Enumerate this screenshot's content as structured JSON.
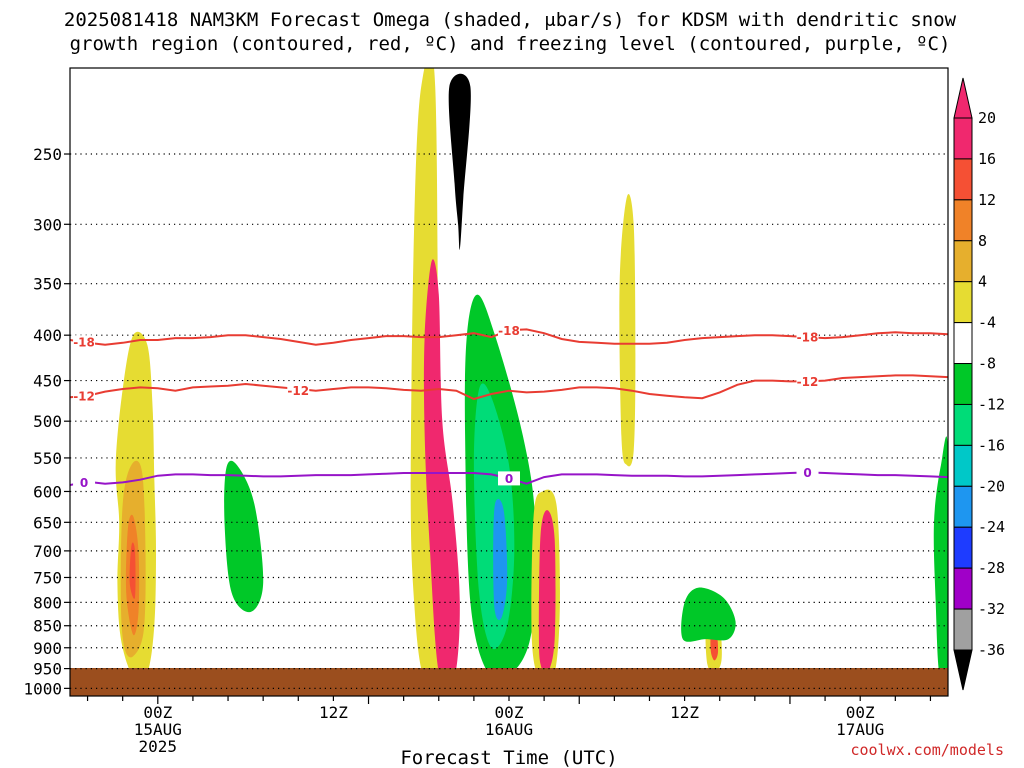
{
  "chart_data": {
    "type": "heatmap",
    "title_line1": "2025081418 NAM3KM Forecast Omega (shaded, μbar/s) for KDSM with dendritic snow",
    "title_line2": "growth region (contoured, red, ºC) and freezing level (contoured, purple, ºC)",
    "xlabel": "Forecast Time (UTC)",
    "credit": "coolwx.com/models",
    "x_axis": {
      "unit": "hours after 2025-08-14 18Z",
      "range": [
        -5,
        45
      ],
      "ticks": [
        {
          "x": 0,
          "lines": [
            "00Z",
            "15AUG",
            "2025"
          ]
        },
        {
          "x": 10,
          "lines": [
            "12Z"
          ]
        },
        {
          "x": 20,
          "lines": [
            "00Z",
            "16AUG"
          ]
        },
        {
          "x": 30,
          "lines": [
            "12Z"
          ]
        },
        {
          "x": 40,
          "lines": [
            "00Z",
            "17AUG"
          ]
        }
      ]
    },
    "y_axis": {
      "unit": "hPa",
      "scale": "log",
      "reversed": true,
      "range": [
        1020,
        200
      ],
      "ticks": [
        250,
        300,
        350,
        400,
        450,
        500,
        550,
        600,
        650,
        700,
        750,
        800,
        850,
        900,
        950,
        1000
      ],
      "grid": "dotted"
    },
    "colorbar": {
      "labels": [
        "20",
        "16",
        "12",
        "8",
        "4",
        "-4",
        "-8",
        "-12",
        "-16",
        "-20",
        "-24",
        "-28",
        "-32",
        "-36"
      ],
      "colors": [
        "#f0286e",
        "#f55034",
        "#f08228",
        "#e6af2d",
        "#e6dc32",
        "#ffffff",
        "#00c828",
        "#00dc78",
        "#00c8c8",
        "#1e96f0",
        "#1e3cff",
        "#a000c8",
        "#a0a0a0",
        "#000000"
      ]
    },
    "shaded_features": [
      {
        "name": "",
        "color": "#e6dc32",
        "points": [
          [
            -2.2,
            650
          ],
          [
            -2.4,
            560
          ],
          [
            -2.0,
            460
          ],
          [
            -1.4,
            400
          ],
          [
            -0.6,
            410
          ],
          [
            -0.3,
            480
          ],
          [
            -0.2,
            580
          ],
          [
            -0.1,
            700
          ],
          [
            -0.2,
            850
          ],
          [
            -0.6,
            960
          ],
          [
            -1.4,
            970
          ],
          [
            -2.1,
            880
          ],
          [
            -2.3,
            760
          ]
        ]
      },
      {
        "name": "",
        "color": "#e6af2d",
        "points": [
          [
            -2.1,
            800
          ],
          [
            -2.0,
            620
          ],
          [
            -1.5,
            560
          ],
          [
            -0.9,
            570
          ],
          [
            -0.7,
            700
          ],
          [
            -0.8,
            860
          ],
          [
            -1.4,
            920
          ],
          [
            -1.9,
            900
          ]
        ]
      },
      {
        "name": "",
        "color": "#f08228",
        "points": [
          [
            -1.8,
            780
          ],
          [
            -1.7,
            660
          ],
          [
            -1.4,
            640
          ],
          [
            -1.1,
            700
          ],
          [
            -1.1,
            820
          ],
          [
            -1.4,
            870
          ]
        ]
      },
      {
        "name": "",
        "color": "#f55034",
        "points": [
          [
            -1.6,
            760
          ],
          [
            -1.5,
            690
          ],
          [
            -1.3,
            700
          ],
          [
            -1.3,
            790
          ]
        ]
      },
      {
        "name": "",
        "color": "#00c828",
        "points": [
          [
            3.8,
            650
          ],
          [
            3.9,
            565
          ],
          [
            4.5,
            560
          ],
          [
            5.5,
            620
          ],
          [
            6.0,
            760
          ],
          [
            5.3,
            820
          ],
          [
            4.2,
            780
          ]
        ]
      },
      {
        "name": "",
        "color": "#e6dc32",
        "points": [
          [
            14.6,
            800
          ],
          [
            14.4,
            600
          ],
          [
            14.6,
            300
          ],
          [
            15.0,
            210
          ],
          [
            15.8,
            210
          ],
          [
            16.0,
            600
          ],
          [
            16.2,
            900
          ],
          [
            15.6,
            980
          ],
          [
            15.0,
            950
          ]
        ]
      },
      {
        "name": "",
        "color": "#f0286e",
        "points": [
          [
            15.5,
            700
          ],
          [
            15.2,
            520
          ],
          [
            15.2,
            400
          ],
          [
            15.6,
            330
          ],
          [
            16.0,
            360
          ],
          [
            16.2,
            500
          ],
          [
            16.8,
            620
          ],
          [
            17.2,
            800
          ],
          [
            16.9,
            970
          ],
          [
            16.0,
            960
          ]
        ]
      },
      {
        "name": "",
        "color": "#000000",
        "points": [
          [
            16.6,
            210
          ],
          [
            17.8,
            210
          ],
          [
            17.4,
            280
          ],
          [
            17.2,
            320
          ],
          [
            17.1,
            300
          ],
          [
            16.9,
            270
          ]
        ]
      },
      {
        "name": "",
        "color": "#00c828",
        "points": [
          [
            17.5,
            520
          ],
          [
            17.6,
            400
          ],
          [
            18.2,
            360
          ],
          [
            19.2,
            400
          ],
          [
            20.8,
            520
          ],
          [
            21.5,
            650
          ],
          [
            21.3,
            860
          ],
          [
            20.2,
            960
          ],
          [
            18.8,
            960
          ],
          [
            17.8,
            800
          ]
        ]
      },
      {
        "name": "",
        "color": "#00dc78",
        "points": [
          [
            18.0,
            560
          ],
          [
            18.3,
            460
          ],
          [
            19.0,
            470
          ],
          [
            20.0,
            560
          ],
          [
            20.3,
            700
          ],
          [
            19.9,
            850
          ],
          [
            19.0,
            900
          ],
          [
            18.3,
            780
          ]
        ]
      },
      {
        "name": "",
        "color": "#1e96f0",
        "points": [
          [
            19.1,
            720
          ],
          [
            19.2,
            620
          ],
          [
            19.7,
            630
          ],
          [
            19.9,
            750
          ],
          [
            19.6,
            830
          ],
          [
            19.2,
            820
          ]
        ]
      },
      {
        "name": "",
        "color": "#e6dc32",
        "points": [
          [
            21.3,
            880
          ],
          [
            21.4,
            640
          ],
          [
            21.9,
            600
          ],
          [
            22.7,
            620
          ],
          [
            22.9,
            800
          ],
          [
            22.6,
            960
          ],
          [
            21.8,
            980
          ]
        ]
      },
      {
        "name": "",
        "color": "#f0286e",
        "points": [
          [
            21.7,
            860
          ],
          [
            21.8,
            670
          ],
          [
            22.2,
            630
          ],
          [
            22.6,
            680
          ],
          [
            22.6,
            880
          ],
          [
            22.2,
            960
          ],
          [
            21.8,
            940
          ]
        ]
      },
      {
        "name": "",
        "color": "#e6dc32",
        "points": [
          [
            26.4,
            520
          ],
          [
            26.3,
            350
          ],
          [
            26.7,
            280
          ],
          [
            27.1,
            300
          ],
          [
            27.2,
            420
          ],
          [
            27.1,
            540
          ],
          [
            26.7,
            560
          ]
        ]
      },
      {
        "name": "",
        "color": "#e6dc32",
        "points": [
          [
            31.3,
            940
          ],
          [
            31.2,
            860
          ],
          [
            31.5,
            830
          ],
          [
            32.0,
            850
          ],
          [
            32.1,
            930
          ],
          [
            31.7,
            960
          ]
        ]
      },
      {
        "name": "",
        "color": "#f55034",
        "points": [
          [
            31.5,
            910
          ],
          [
            31.5,
            870
          ],
          [
            31.8,
            860
          ],
          [
            31.9,
            910
          ],
          [
            31.7,
            930
          ]
        ]
      },
      {
        "name": "",
        "color": "#00c828",
        "points": [
          [
            29.9,
            880
          ],
          [
            30.0,
            800
          ],
          [
            30.8,
            770
          ],
          [
            32.2,
            790
          ],
          [
            32.9,
            840
          ],
          [
            32.5,
            880
          ],
          [
            31.2,
            880
          ]
        ]
      },
      {
        "name": "",
        "color": "#00c828",
        "points": [
          [
            44.5,
            960
          ],
          [
            44.3,
            800
          ],
          [
            44.2,
            650
          ],
          [
            44.6,
            560
          ],
          [
            45.0,
            540
          ],
          [
            45.0,
            960
          ]
        ]
      }
    ],
    "contours": [
      {
        "name": "",
        "label": "-18",
        "color": "#e83c32",
        "x": [
          -5,
          -4,
          -3,
          -2,
          -1,
          0,
          1,
          2,
          3,
          4,
          5,
          6,
          7,
          8,
          9,
          10,
          11,
          12,
          13,
          14,
          15,
          16,
          17,
          18,
          19,
          20,
          21,
          22,
          23,
          24,
          25,
          26,
          27,
          28,
          29,
          30,
          31,
          32,
          33,
          34,
          35,
          36,
          37,
          38,
          39,
          40,
          41,
          42,
          43,
          44,
          45
        ],
        "y": [
          405,
          408,
          410,
          408,
          405,
          405,
          403,
          403,
          402,
          400,
          400,
          402,
          404,
          407,
          410,
          408,
          405,
          403,
          401,
          401,
          402,
          402,
          400,
          398,
          402,
          395,
          394,
          398,
          404,
          407,
          408,
          409,
          409,
          409,
          408,
          405,
          403,
          402,
          401,
          400,
          400,
          401,
          402,
          403,
          402,
          400,
          398,
          397,
          398,
          398,
          399
        ]
      },
      {
        "name": "",
        "label": "-12",
        "color": "#e83c32",
        "x": [
          -5,
          -4,
          -3,
          -2,
          -1,
          0,
          1,
          2,
          3,
          4,
          5,
          6,
          7,
          8,
          9,
          10,
          11,
          12,
          13,
          14,
          15,
          16,
          17,
          18,
          19,
          20,
          21,
          22,
          23,
          24,
          25,
          26,
          27,
          28,
          29,
          30,
          31,
          32,
          33,
          34,
          35,
          36,
          37,
          38,
          39,
          40,
          41,
          42,
          43,
          44,
          45
        ],
        "y": [
          470,
          468,
          463,
          460,
          458,
          459,
          462,
          458,
          457,
          456,
          454,
          456,
          458,
          460,
          462,
          460,
          458,
          458,
          459,
          461,
          462,
          460,
          462,
          472,
          466,
          462,
          464,
          463,
          461,
          458,
          458,
          459,
          462,
          466,
          468,
          470,
          471,
          464,
          455,
          450,
          450,
          451,
          451,
          450,
          447,
          446,
          445,
          444,
          444,
          445,
          446
        ]
      },
      {
        "name": "",
        "label": "0",
        "color": "#9614c8",
        "x": [
          -5,
          -4,
          -3,
          -2,
          -1,
          0,
          1,
          2,
          3,
          4,
          5,
          6,
          7,
          8,
          9,
          10,
          11,
          12,
          13,
          14,
          15,
          16,
          17,
          18,
          19,
          20,
          21,
          22,
          23,
          24,
          25,
          26,
          27,
          28,
          29,
          30,
          31,
          32,
          33,
          34,
          35,
          36,
          37,
          38,
          39,
          40,
          41,
          42,
          43,
          44,
          45
        ],
        "y": [
          590,
          585,
          588,
          586,
          582,
          576,
          574,
          574,
          575,
          575,
          576,
          577,
          577,
          576,
          575,
          575,
          575,
          574,
          573,
          572,
          572,
          572,
          572,
          572,
          574,
          580,
          588,
          578,
          574,
          574,
          574,
          575,
          576,
          576,
          576,
          577,
          577,
          576,
          575,
          574,
          573,
          572,
          571,
          572,
          573,
          574,
          575,
          575,
          576,
          577,
          578
        ]
      }
    ]
  }
}
